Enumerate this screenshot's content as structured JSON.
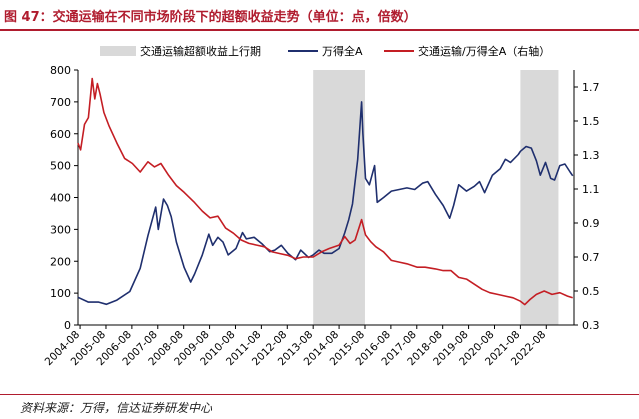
{
  "figure": {
    "title": "图 47：交通运输在不同市场阶段下的超额收益走势（单位：点，倍数）",
    "source": "资料来源：万得，信达证券研发中心"
  },
  "chart_data": {
    "type": "line",
    "title": "交通运输在不同市场阶段下的超额收益走势（单位：点，倍数）",
    "legend": {
      "placement": "top",
      "entries": [
        "交通运输超额收益上行期",
        "万得全A",
        "交通运输/万得全A（右轴）"
      ]
    },
    "left_axis": {
      "ylim": [
        0,
        800
      ],
      "ticks": [
        "0",
        "100",
        "200",
        "300",
        "400",
        "500",
        "600",
        "700",
        "800"
      ]
    },
    "right_axis": {
      "ylim": [
        0.3,
        1.8
      ],
      "ticks": [
        "0.3",
        "0.5",
        "0.7",
        "0.9",
        "1.1",
        "1.3",
        "1.5",
        "1.7"
      ]
    },
    "x_axis": {
      "range": [
        2004.5,
        2023.65
      ],
      "ticks": [
        2004.58,
        2005.58,
        2006.58,
        2007.58,
        2008.58,
        2009.58,
        2010.58,
        2011.58,
        2012.58,
        2013.58,
        2014.58,
        2015.58,
        2016.58,
        2017.58,
        2018.58,
        2019.58,
        2020.58,
        2021.58,
        2022.58
      ],
      "tick_labels": [
        "2004-08",
        "2005-08",
        "2006-08",
        "2007-08",
        "2008-08",
        "2009-08",
        "2010-08",
        "2011-08",
        "2012-08",
        "2013-08",
        "2014-08",
        "2015-08",
        "2016-08",
        "2017-08",
        "2018-08",
        "2019-08",
        "2020-08",
        "2021-08",
        "2022-08"
      ]
    },
    "shaded_periods": [
      {
        "name": "交通运输超额收益上行期",
        "start": 2013.58,
        "end": 2015.58
      },
      {
        "name": "交通运输超额收益上行期",
        "start": 2021.58,
        "end": 2023.05
      }
    ],
    "series": [
      {
        "name": "万得全A",
        "axis": "left",
        "color": "#1f2f6e",
        "points": [
          [
            2004.5,
            87
          ],
          [
            2004.9,
            72
          ],
          [
            2005.3,
            72
          ],
          [
            2005.6,
            65
          ],
          [
            2006.0,
            78
          ],
          [
            2006.5,
            105
          ],
          [
            2006.9,
            178
          ],
          [
            2007.2,
            280
          ],
          [
            2007.5,
            370
          ],
          [
            2007.6,
            300
          ],
          [
            2007.8,
            395
          ],
          [
            2007.95,
            375
          ],
          [
            2008.1,
            340
          ],
          [
            2008.3,
            260
          ],
          [
            2008.6,
            180
          ],
          [
            2008.85,
            135
          ],
          [
            2009.0,
            160
          ],
          [
            2009.3,
            220
          ],
          [
            2009.55,
            285
          ],
          [
            2009.7,
            250
          ],
          [
            2009.9,
            275
          ],
          [
            2010.1,
            260
          ],
          [
            2010.3,
            220
          ],
          [
            2010.6,
            240
          ],
          [
            2010.85,
            290
          ],
          [
            2011.0,
            270
          ],
          [
            2011.3,
            275
          ],
          [
            2011.6,
            255
          ],
          [
            2011.9,
            230
          ],
          [
            2012.1,
            235
          ],
          [
            2012.35,
            250
          ],
          [
            2012.6,
            225
          ],
          [
            2012.9,
            205
          ],
          [
            2013.1,
            235
          ],
          [
            2013.4,
            212
          ],
          [
            2013.58,
            220
          ],
          [
            2013.8,
            235
          ],
          [
            2014.0,
            225
          ],
          [
            2014.3,
            225
          ],
          [
            2014.58,
            240
          ],
          [
            2014.8,
            290
          ],
          [
            2014.95,
            330
          ],
          [
            2015.1,
            380
          ],
          [
            2015.3,
            520
          ],
          [
            2015.45,
            700
          ],
          [
            2015.5,
            600
          ],
          [
            2015.6,
            460
          ],
          [
            2015.75,
            440
          ],
          [
            2015.95,
            500
          ],
          [
            2016.05,
            385
          ],
          [
            2016.3,
            400
          ],
          [
            2016.6,
            420
          ],
          [
            2016.9,
            425
          ],
          [
            2017.2,
            430
          ],
          [
            2017.5,
            425
          ],
          [
            2017.8,
            445
          ],
          [
            2018.0,
            450
          ],
          [
            2018.3,
            410
          ],
          [
            2018.6,
            375
          ],
          [
            2018.85,
            335
          ],
          [
            2019.0,
            375
          ],
          [
            2019.2,
            440
          ],
          [
            2019.5,
            420
          ],
          [
            2019.8,
            435
          ],
          [
            2020.0,
            450
          ],
          [
            2020.2,
            415
          ],
          [
            2020.5,
            470
          ],
          [
            2020.8,
            490
          ],
          [
            2021.0,
            520
          ],
          [
            2021.2,
            510
          ],
          [
            2021.5,
            535
          ],
          [
            2021.58,
            545
          ],
          [
            2021.8,
            560
          ],
          [
            2022.0,
            555
          ],
          [
            2022.2,
            515
          ],
          [
            2022.35,
            470
          ],
          [
            2022.55,
            510
          ],
          [
            2022.75,
            460
          ],
          [
            2022.9,
            455
          ],
          [
            2023.1,
            500
          ],
          [
            2023.3,
            505
          ],
          [
            2023.5,
            480
          ],
          [
            2023.6,
            468
          ]
        ]
      },
      {
        "name": "交通运输/万得全A（右轴）",
        "axis": "right",
        "color": "#c41e24",
        "points": [
          [
            2004.5,
            1.37
          ],
          [
            2004.6,
            1.33
          ],
          [
            2004.75,
            1.48
          ],
          [
            2004.9,
            1.52
          ],
          [
            2005.05,
            1.75
          ],
          [
            2005.15,
            1.63
          ],
          [
            2005.25,
            1.72
          ],
          [
            2005.35,
            1.66
          ],
          [
            2005.5,
            1.55
          ],
          [
            2005.7,
            1.47
          ],
          [
            2006.0,
            1.37
          ],
          [
            2006.3,
            1.28
          ],
          [
            2006.6,
            1.25
          ],
          [
            2006.9,
            1.2
          ],
          [
            2007.2,
            1.26
          ],
          [
            2007.45,
            1.23
          ],
          [
            2007.7,
            1.25
          ],
          [
            2008.0,
            1.18
          ],
          [
            2008.3,
            1.12
          ],
          [
            2008.6,
            1.08
          ],
          [
            2009.0,
            1.02
          ],
          [
            2009.3,
            0.97
          ],
          [
            2009.6,
            0.93
          ],
          [
            2009.9,
            0.94
          ],
          [
            2010.2,
            0.87
          ],
          [
            2010.5,
            0.84
          ],
          [
            2010.8,
            0.8
          ],
          [
            2011.1,
            0.78
          ],
          [
            2011.4,
            0.77
          ],
          [
            2011.7,
            0.76
          ],
          [
            2012.0,
            0.73
          ],
          [
            2012.3,
            0.72
          ],
          [
            2012.6,
            0.71
          ],
          [
            2012.9,
            0.69
          ],
          [
            2013.2,
            0.7
          ],
          [
            2013.58,
            0.7
          ],
          [
            2013.9,
            0.73
          ],
          [
            2014.2,
            0.75
          ],
          [
            2014.58,
            0.77
          ],
          [
            2014.8,
            0.82
          ],
          [
            2015.0,
            0.78
          ],
          [
            2015.2,
            0.8
          ],
          [
            2015.45,
            0.92
          ],
          [
            2015.6,
            0.83
          ],
          [
            2015.8,
            0.79
          ],
          [
            2016.0,
            0.76
          ],
          [
            2016.3,
            0.73
          ],
          [
            2016.6,
            0.68
          ],
          [
            2016.9,
            0.67
          ],
          [
            2017.2,
            0.66
          ],
          [
            2017.6,
            0.64
          ],
          [
            2017.9,
            0.64
          ],
          [
            2018.3,
            0.63
          ],
          [
            2018.6,
            0.62
          ],
          [
            2018.9,
            0.62
          ],
          [
            2019.2,
            0.58
          ],
          [
            2019.5,
            0.57
          ],
          [
            2019.8,
            0.54
          ],
          [
            2020.1,
            0.51
          ],
          [
            2020.4,
            0.49
          ],
          [
            2020.7,
            0.48
          ],
          [
            2021.0,
            0.47
          ],
          [
            2021.3,
            0.46
          ],
          [
            2021.58,
            0.44
          ],
          [
            2021.75,
            0.42
          ],
          [
            2021.95,
            0.45
          ],
          [
            2022.2,
            0.48
          ],
          [
            2022.5,
            0.5
          ],
          [
            2022.8,
            0.48
          ],
          [
            2023.1,
            0.49
          ],
          [
            2023.4,
            0.47
          ],
          [
            2023.6,
            0.46
          ]
        ]
      }
    ]
  }
}
